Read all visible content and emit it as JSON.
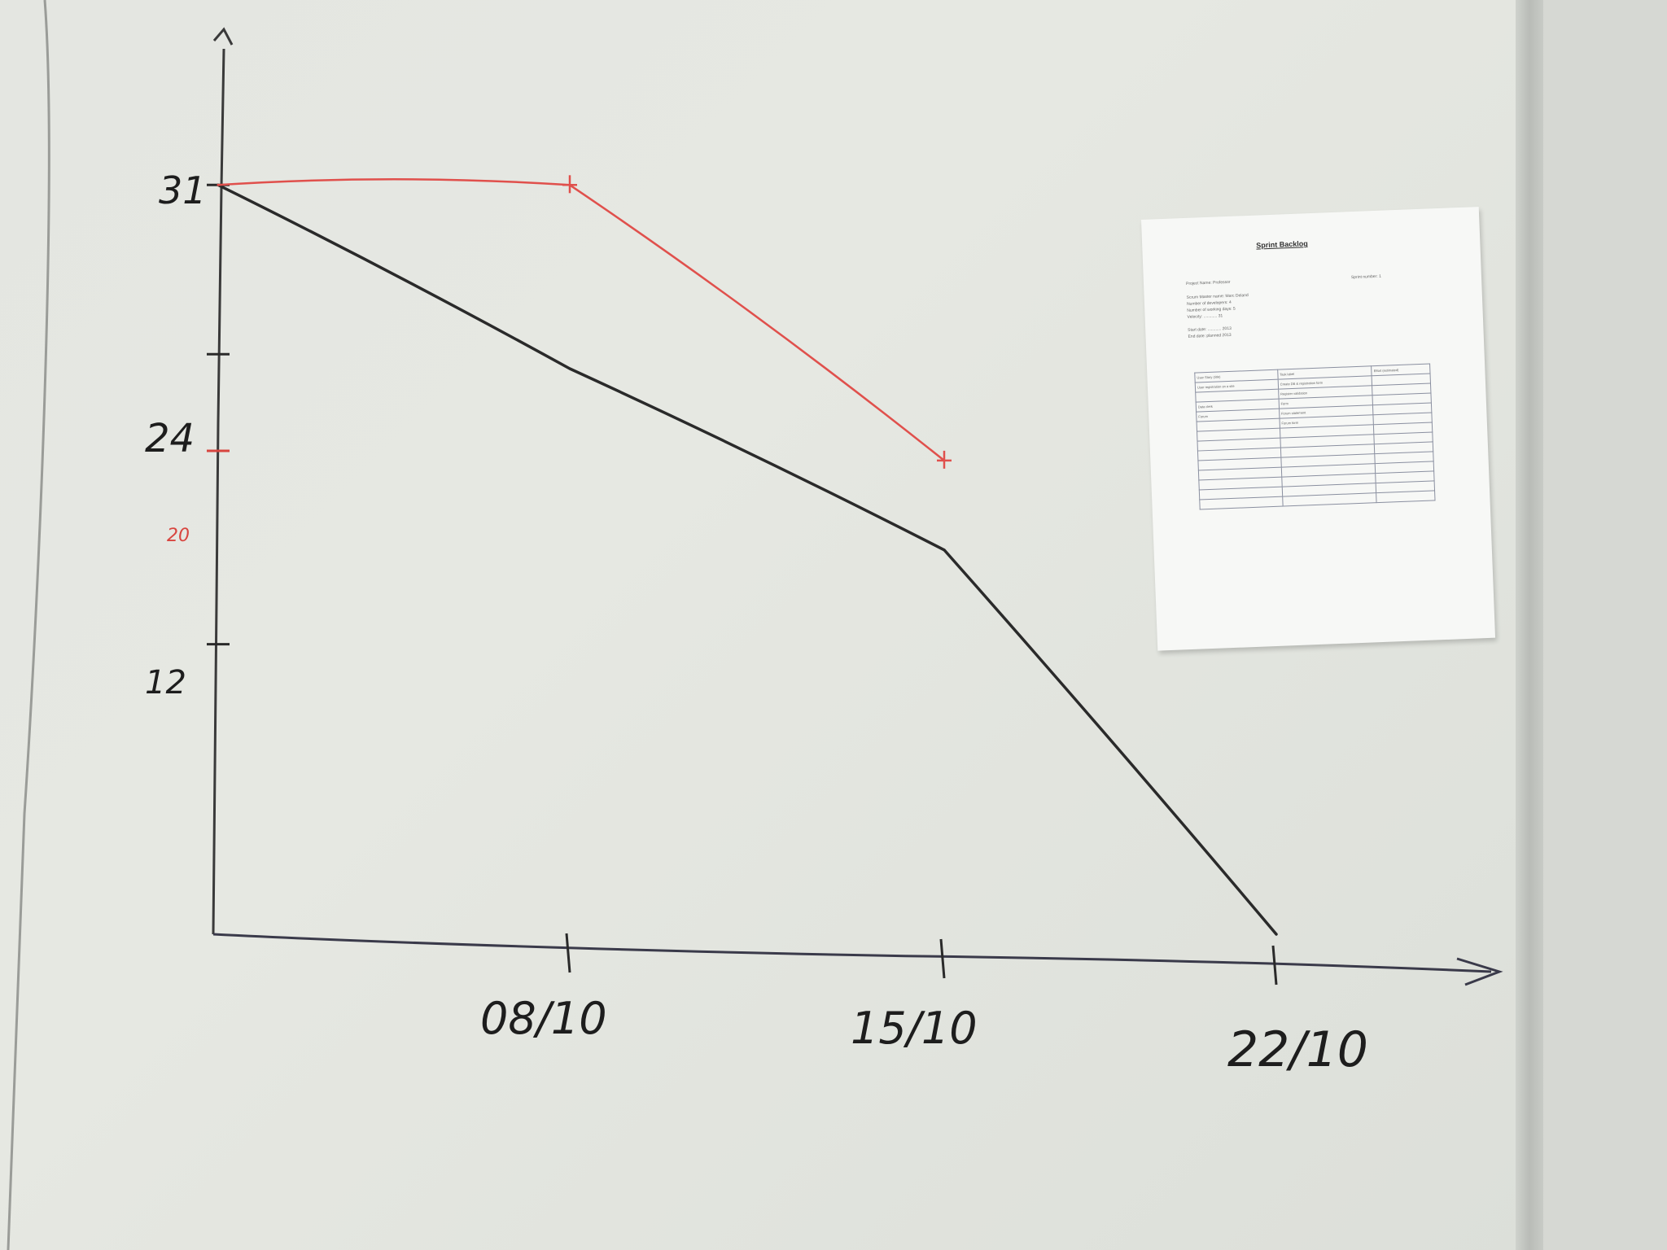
{
  "chart_data": {
    "type": "line",
    "title": "",
    "xlabel": "",
    "ylabel": "",
    "x_tick_labels": [
      "08/10",
      "15/10",
      "22/10"
    ],
    "y_tick_labels": [
      "31",
      "24",
      "20",
      "12"
    ],
    "y_tick_values": [
      31,
      24,
      20,
      12
    ],
    "ylim": [
      0,
      39
    ],
    "grid": false,
    "legend": "none",
    "series": [
      {
        "color": "#2a2a2a",
        "points": [
          {
            "x": "01/10",
            "y": 31
          },
          {
            "x": "08/10",
            "y": 23.4
          },
          {
            "x": "15/10",
            "y": 15.9
          },
          {
            "x": "22/10",
            "y": 0
          }
        ]
      },
      {
        "color": "#e0504c",
        "points": [
          {
            "x": "01/10",
            "y": 31
          },
          {
            "x": "08/10",
            "y": 31
          },
          {
            "x": "15/10",
            "y": 19.6
          }
        ]
      }
    ]
  },
  "paper": {
    "title": "Sprint Backlog",
    "lines": [
      "Project Name: Professor",
      "Sprint number: 1",
      "Scrum Master name: Marc Deland",
      "Number of developers: 4",
      "Number of working days: 5",
      "Velocity: ............ 31",
      "Start date: ............ 2013",
      "End date: planned 2013"
    ],
    "table_headers": [
      "User Story (title)",
      "Task label",
      "Effort (estimated)"
    ],
    "table_rows": [
      [
        "User registration on a site",
        "Create DB & registration form",
        ""
      ],
      [
        "",
        "Register validation",
        ""
      ],
      [
        "Data clerk",
        "Form",
        ""
      ],
      [
        "Forum",
        "Forum statement",
        ""
      ],
      [
        "",
        "Forum form",
        ""
      ]
    ]
  }
}
